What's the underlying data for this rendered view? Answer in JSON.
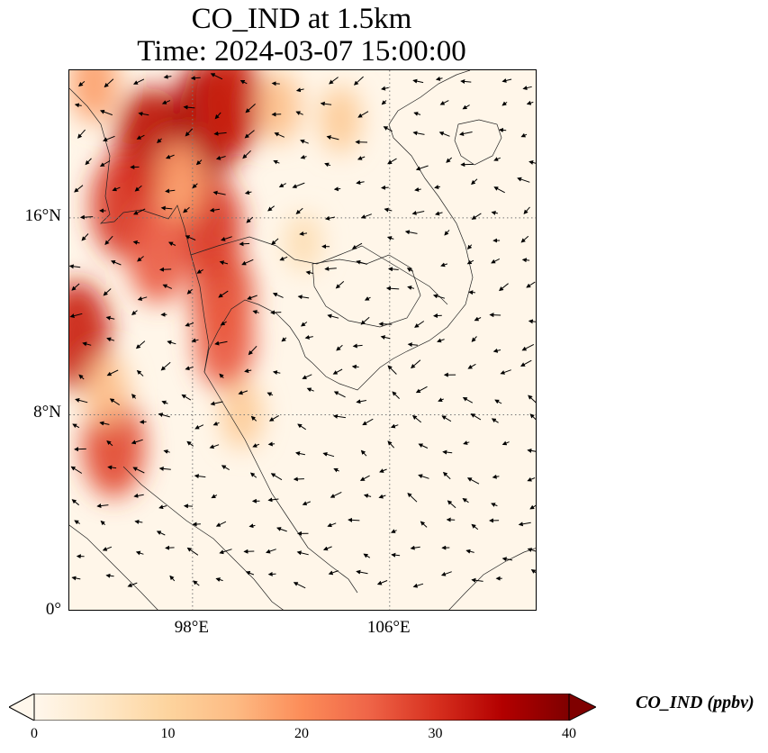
{
  "title": {
    "line1": "CO_IND at 1.5km",
    "line2": "Time: 2024-03-07 15:00:00"
  },
  "map": {
    "extent": {
      "lon_min": 93,
      "lon_max": 112,
      "lat_min": 0,
      "lat_max": 22
    },
    "gridlines": {
      "style": "dotted",
      "lons": [
        98,
        106
      ],
      "lats": [
        8,
        16
      ]
    },
    "lat_ticks": [
      {
        "value": 16,
        "label": "16°N"
      },
      {
        "value": 8,
        "label": "8°N"
      },
      {
        "value": 0,
        "label": "0°"
      }
    ],
    "lon_ticks": [
      {
        "value": 98,
        "label": "98°E"
      },
      {
        "value": 106,
        "label": "106°E"
      }
    ],
    "field": "CO_IND",
    "level": "1.5km",
    "hotspots": [
      {
        "lon": 96.3,
        "lat": 19.0,
        "value": 34
      },
      {
        "lon": 98.6,
        "lat": 20.0,
        "value": 36
      },
      {
        "lon": 99.5,
        "lat": 20.7,
        "value": 32
      },
      {
        "lon": 95.2,
        "lat": 16.5,
        "value": 30
      },
      {
        "lon": 98.7,
        "lat": 15.6,
        "value": 30
      },
      {
        "lon": 99.2,
        "lat": 12.8,
        "value": 28
      },
      {
        "lon": 99.3,
        "lat": 11.0,
        "value": 26
      },
      {
        "lon": 96.6,
        "lat": 14.5,
        "value": 26
      },
      {
        "lon": 93.3,
        "lat": 11.2,
        "value": 32
      },
      {
        "lon": 94.8,
        "lat": 6.7,
        "value": 28
      },
      {
        "lon": 94.0,
        "lat": 21.5,
        "value": 18
      },
      {
        "lon": 97.5,
        "lat": 17.5,
        "value": 18
      },
      {
        "lon": 94.5,
        "lat": 9.0,
        "value": 14
      },
      {
        "lon": 101.5,
        "lat": 20.5,
        "value": 14
      },
      {
        "lon": 104.0,
        "lat": 20.0,
        "value": 12
      },
      {
        "lon": 100.0,
        "lat": 8.0,
        "value": 12
      },
      {
        "lon": 102.5,
        "lat": 15.0,
        "value": 8
      }
    ]
  },
  "colorbar": {
    "label": "CO_IND (ppbv)",
    "min": 0,
    "max": 40,
    "extend": "both",
    "colormap": "OrRd",
    "ticks": [
      {
        "value": 0,
        "label": "0"
      },
      {
        "value": 10,
        "label": "10"
      },
      {
        "value": 20,
        "label": "20"
      },
      {
        "value": 30,
        "label": "30"
      },
      {
        "value": 40,
        "label": "40"
      }
    ],
    "stops": [
      "#fff7ec",
      "#fee8c8",
      "#fdd49e",
      "#fdbb84",
      "#fc8d59",
      "#ef6548",
      "#d7301f",
      "#b30000",
      "#7f0000"
    ]
  }
}
